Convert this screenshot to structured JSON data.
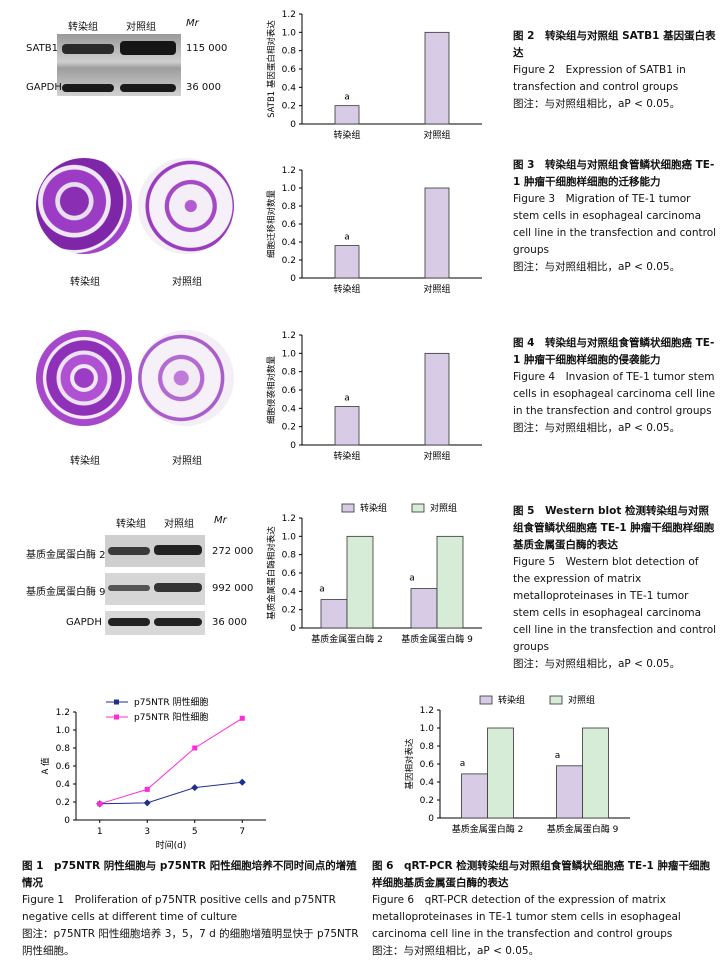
{
  "fig2": {
    "blot": {
      "groups": [
        "转染组",
        "对照组"
      ],
      "mr_label": "Mr",
      "rows": [
        {
          "name": "SATB1",
          "mw": "115 000"
        },
        {
          "name": "GAPDH",
          "mw": "36 000"
        }
      ]
    },
    "caption": {
      "cn_title": "图 2　转染组与对照组 SATB1 基因蛋白表达",
      "en": "Figure 2　Expression of SATB1 in transfection and control groups",
      "note": "图注：与对照组相比，aP < 0.05。"
    }
  },
  "fig3": {
    "dish_labels": [
      "转染组",
      "对照组"
    ],
    "caption": {
      "cn_title": "图 3　转染组与对照组食管鳞状细胞癌 TE-1 肿瘤干细胞样细胞的迁移能力",
      "en": "Figure 3　Migration of TE-1 tumor stem cells in esophageal carcinoma cell line in the transfection and control groups",
      "note": "图注：与对照组相比，aP < 0.05。"
    }
  },
  "fig4": {
    "dish_labels": [
      "转染组",
      "对照组"
    ],
    "caption": {
      "cn_title": "图 4　转染组与对照组食管鳞状细胞癌 TE-1 肿瘤干细胞样细胞的侵袭能力",
      "en": "Figure 4　Invasion of TE-1 tumor stem cells in esophageal carcinoma cell line in the transfection and control groups",
      "note": "图注：与对照组相比，aP < 0.05。"
    }
  },
  "fig5": {
    "blot": {
      "groups": [
        "转染组",
        "对照组"
      ],
      "mr_label": "Mr",
      "rows": [
        {
          "name": "基质金属蛋白酶 2",
          "mw": "272 000"
        },
        {
          "name": "基质金属蛋白酶 9",
          "mw": "992 000"
        },
        {
          "name": "GAPDH",
          "mw": "36 000"
        }
      ]
    },
    "caption": {
      "cn_title": "图 5　Western blot 检测转染组与对照组食管鳞状细胞癌 TE-1 肿瘤干细胞样细胞基质金属蛋白酶的表达",
      "en": "Figure 5　Western blot detection of the expression of matrix metalloproteinases in TE-1 tumor stem cells in esophageal carcinoma cell line in the transfection and control groups",
      "note": "图注：与对照组相比，aP < 0.05。"
    }
  },
  "fig1": {
    "caption": {
      "cn_title": "图 1　p75NTR 阴性细胞与 p75NTR 阳性细胞培养不同时间点的增殖情况",
      "en": "Figure 1　Proliferation of p75NTR positive cells and p75NTR negative cells at different time of culture",
      "note": "图注：p75NTR 阳性细胞培养 3，5，7 d 的细胞增殖明显快于 p75NTR 阴性细胞。"
    }
  },
  "fig6": {
    "caption": {
      "cn_title": "图 6　qRT-PCR 检测转染组与对照组食管鳞状细胞癌 TE-1 肿瘤干细胞样细胞基质金属蛋白酶的表达",
      "en": "Figure 6　qRT-PCR detection of the expression of matrix metalloproteinases in TE-1 tumor stem cells in esophageal carcinoma cell line in the transfection and control groups",
      "note": "图注：与对照组相比，aP < 0.05。"
    }
  },
  "colors": {
    "transfection": "#d8cbe6",
    "control": "#d6ecd6",
    "negative": "#1f2f8f",
    "positive": "#ff2bd6"
  },
  "chart_data": [
    {
      "id": "c2",
      "type": "bar",
      "categories": [
        "转染组",
        "对照组"
      ],
      "values": [
        0.2,
        1.0
      ],
      "ylabel": "SATB1 基因蛋白相对表达",
      "ylim": [
        0,
        1.2
      ],
      "yticks": [
        0,
        0.2,
        0.4,
        0.6,
        0.8,
        1.0,
        1.2
      ],
      "annotations": [
        "a",
        ""
      ]
    },
    {
      "id": "c3",
      "type": "bar",
      "categories": [
        "转染组",
        "对照组"
      ],
      "values": [
        0.36,
        1.0
      ],
      "ylabel": "细胞迁移相对数量",
      "ylim": [
        0,
        1.2
      ],
      "yticks": [
        0,
        0.2,
        0.4,
        0.6,
        0.8,
        1.0,
        1.2
      ],
      "annotations": [
        "a",
        ""
      ]
    },
    {
      "id": "c4",
      "type": "bar",
      "categories": [
        "转染组",
        "对照组"
      ],
      "values": [
        0.42,
        1.0
      ],
      "ylabel": "细胞侵袭相对数量",
      "ylim": [
        0,
        1.2
      ],
      "yticks": [
        0,
        0.2,
        0.4,
        0.6,
        0.8,
        1.0,
        1.2
      ],
      "annotations": [
        "a",
        ""
      ]
    },
    {
      "id": "c5",
      "type": "bar",
      "categories": [
        "基质金属蛋白酶 2",
        "基质金属蛋白酶 9"
      ],
      "series": [
        {
          "name": "转染组",
          "values": [
            0.31,
            0.43
          ]
        },
        {
          "name": "对照组",
          "values": [
            1.0,
            1.0
          ]
        }
      ],
      "ylabel": "基质金属蛋白酶相对表达",
      "ylim": [
        0,
        1.2
      ],
      "yticks": [
        0,
        0.2,
        0.4,
        0.6,
        0.8,
        1.0,
        1.2
      ],
      "annotations": [
        "a",
        "a"
      ],
      "legend": "top"
    },
    {
      "id": "c1",
      "type": "line",
      "x": [
        1,
        3,
        5,
        7
      ],
      "series": [
        {
          "name": "p75NTR 阴性细胞",
          "values": [
            0.18,
            0.19,
            0.36,
            0.42
          ]
        },
        {
          "name": "p75NTR 阳性细胞",
          "values": [
            0.18,
            0.34,
            0.8,
            1.13
          ]
        }
      ],
      "xlabel": "时间(d)",
      "ylabel": "A 值",
      "ylim": [
        0,
        1.2
      ],
      "xlim": [
        0,
        8
      ],
      "yticks": [
        0,
        0.2,
        0.4,
        0.6,
        0.8,
        1.0,
        1.2
      ],
      "xticks": [
        1,
        3,
        5,
        7
      ],
      "legend": "top-left"
    },
    {
      "id": "c6",
      "type": "bar",
      "categories": [
        "基质金属蛋白酶 2",
        "基质金属蛋白酶 9"
      ],
      "series": [
        {
          "name": "转染组",
          "values": [
            0.49,
            0.58
          ]
        },
        {
          "name": "对照组",
          "values": [
            1.0,
            1.0
          ]
        }
      ],
      "ylabel": "基因相对表达",
      "ylim": [
        0,
        1.2
      ],
      "yticks": [
        0,
        0.2,
        0.4,
        0.6,
        0.8,
        1.0,
        1.2
      ],
      "annotations": [
        "a",
        "a"
      ],
      "legend": "top"
    }
  ]
}
